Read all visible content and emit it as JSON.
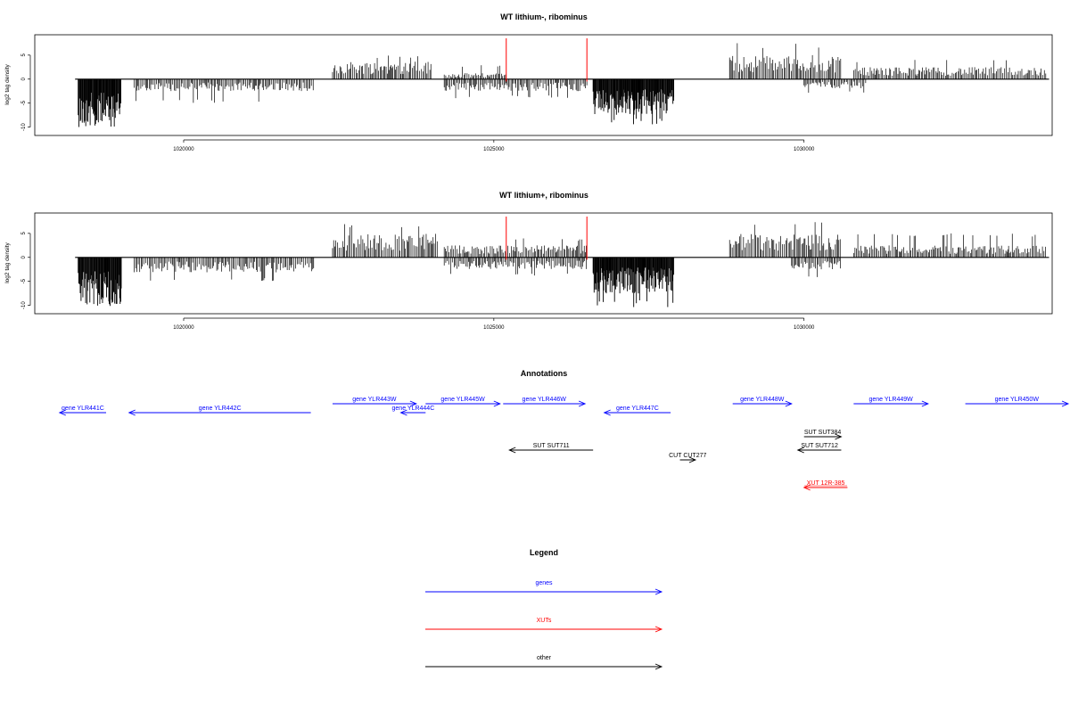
{
  "chart_data": [
    {
      "type": "bar",
      "title": "WT lithium-, ribominus",
      "ylabel": "log2 tag density",
      "xlim": [
        1017600,
        1034000
      ],
      "ylim": [
        -11,
        8.5
      ],
      "x_ticks": [
        "1020000",
        "1025000",
        "1030000"
      ],
      "y_ticks": [
        "5",
        "0",
        "-5",
        "-10"
      ],
      "markers": [
        1025200,
        1026500
      ],
      "coverage_regions": [
        {
          "strand": "minus",
          "start": 1018300,
          "end": 1019000,
          "typical": -8,
          "extreme": -10.5
        },
        {
          "strand": "minus",
          "start": 1019200,
          "end": 1022100,
          "typical": -2,
          "extreme": -5
        },
        {
          "strand": "plus",
          "start": 1022400,
          "end": 1024000,
          "typical": 3,
          "extreme": 5
        },
        {
          "strand": "plus",
          "start": 1024200,
          "end": 1025200,
          "typical": 1,
          "extreme": 3
        },
        {
          "strand": "minus",
          "start": 1024200,
          "end": 1026500,
          "typical": -2,
          "extreme": -4
        },
        {
          "strand": "minus",
          "start": 1026600,
          "end": 1027900,
          "typical": -6,
          "extreme": -9.5
        },
        {
          "strand": "plus",
          "start": 1028800,
          "end": 1030600,
          "typical": 4,
          "extreme": 7.5
        },
        {
          "strand": "minus",
          "start": 1030000,
          "end": 1031000,
          "typical": -1.5,
          "extreme": -3
        },
        {
          "strand": "plus",
          "start": 1030800,
          "end": 1033900,
          "typical": 2,
          "extreme": 4
        }
      ]
    },
    {
      "type": "bar",
      "title": "WT lithium+, ribominus",
      "ylabel": "log2 tag density",
      "xlim": [
        1017600,
        1034000
      ],
      "ylim": [
        -11,
        8.5
      ],
      "x_ticks": [
        "1020000",
        "1025000",
        "1030000"
      ],
      "y_ticks": [
        "5",
        "0",
        "-5",
        "-10"
      ],
      "markers": [
        1025200,
        1026500
      ],
      "coverage_regions": [
        {
          "strand": "minus",
          "start": 1018300,
          "end": 1019000,
          "typical": -8,
          "extreme": -10.5
        },
        {
          "strand": "minus",
          "start": 1019200,
          "end": 1022100,
          "typical": -2.5,
          "extreme": -5
        },
        {
          "strand": "plus",
          "start": 1022400,
          "end": 1024100,
          "typical": 4,
          "extreme": 7
        },
        {
          "strand": "plus",
          "start": 1024200,
          "end": 1026500,
          "typical": 2,
          "extreme": 4
        },
        {
          "strand": "minus",
          "start": 1024200,
          "end": 1026500,
          "typical": -2,
          "extreme": -4
        },
        {
          "strand": "minus",
          "start": 1026600,
          "end": 1027900,
          "typical": -6,
          "extreme": -10.5
        },
        {
          "strand": "plus",
          "start": 1028800,
          "end": 1030600,
          "typical": 4,
          "extreme": 7.5
        },
        {
          "strand": "minus",
          "start": 1029800,
          "end": 1030600,
          "typical": -2,
          "extreme": -4.5
        },
        {
          "strand": "plus",
          "start": 1030800,
          "end": 1033900,
          "typical": 2,
          "extreme": 5
        }
      ]
    }
  ],
  "annotations": {
    "title": "Annotations",
    "features": [
      {
        "label": "gene YLR441C",
        "kind": "gene",
        "strand": "-",
        "start": 1018000,
        "end": 1018750,
        "row": 1
      },
      {
        "label": "gene YLR442C",
        "kind": "gene",
        "strand": "-",
        "start": 1019120,
        "end": 1022050,
        "row": 1
      },
      {
        "label": "gene YLR443W",
        "kind": "gene",
        "strand": "+",
        "start": 1022400,
        "end": 1023750,
        "row": 0
      },
      {
        "label": "gene YLR444C",
        "kind": "gene",
        "strand": "-",
        "start": 1023500,
        "end": 1023900,
        "row": 1
      },
      {
        "label": "gene YLR445W",
        "kind": "gene",
        "strand": "+",
        "start": 1023900,
        "end": 1025100,
        "row": 0
      },
      {
        "label": "gene YLR446W",
        "kind": "gene",
        "strand": "+",
        "start": 1025150,
        "end": 1026470,
        "row": 0
      },
      {
        "label": "gene YLR447C",
        "kind": "gene",
        "strand": "-",
        "start": 1026780,
        "end": 1027850,
        "row": 1
      },
      {
        "label": "gene YLR448W",
        "kind": "gene",
        "strand": "+",
        "start": 1028850,
        "end": 1029800,
        "row": 0
      },
      {
        "label": "gene YLR449W",
        "kind": "gene",
        "strand": "+",
        "start": 1030800,
        "end": 1032000,
        "row": 0
      },
      {
        "label": "gene YLR450W",
        "kind": "gene",
        "strand": "+",
        "start": 1032600,
        "end": 1034500,
        "row": 0
      },
      {
        "label": "SUT SUT711",
        "kind": "other",
        "strand": "-",
        "start": 1025250,
        "end": 1026600,
        "row": 4
      },
      {
        "label": "CUT CUT277",
        "kind": "other",
        "strand": "+",
        "start": 1028000,
        "end": 1028250,
        "row": 5
      },
      {
        "label": "SUT SUT384",
        "kind": "other",
        "strand": "+",
        "start": 1030000,
        "end": 1030600,
        "row": 3
      },
      {
        "label": "SUT SUT712",
        "kind": "other",
        "strand": "-",
        "start": 1029900,
        "end": 1030600,
        "row": 4
      },
      {
        "label": "XUT 12R-385",
        "kind": "xut",
        "strand": "-",
        "start": 1030000,
        "end": 1030700,
        "row": 7
      }
    ]
  },
  "legend": {
    "title": "Legend",
    "items": [
      {
        "label": "genes",
        "color": "#0000ff"
      },
      {
        "label": "XUTs",
        "color": "#ff0000"
      },
      {
        "label": "other",
        "color": "#000000"
      }
    ]
  },
  "colors": {
    "gene": "#0000ff",
    "xut": "#ff0000",
    "other": "#000000",
    "marker": "#ff0000"
  }
}
